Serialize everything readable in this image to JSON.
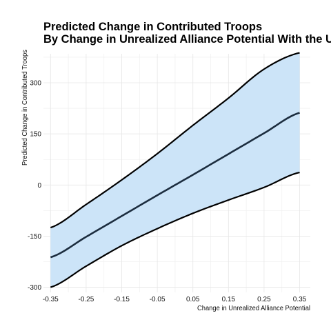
{
  "chart_data": {
    "type": "area",
    "title": "Predicted Change in Contributed Troops",
    "subtitle": "By Change in Unrealized Alliance Potential With the United States",
    "xlabel": "Change in Unrealized Alliance Potential",
    "ylabel": "Predicted Change in Contributed Troops",
    "xlim": [
      -0.37,
      0.38
    ],
    "ylim": [
      -315,
      385
    ],
    "x_ticks": [
      -0.35,
      -0.25,
      -0.15,
      -0.05,
      0.05,
      0.15,
      0.25,
      0.35
    ],
    "x_tick_labels": [
      "-0.35",
      "-0.25",
      "-0.15",
      "-0.05",
      "0.05",
      "0.15",
      "0.25",
      "0.35"
    ],
    "y_ticks": [
      -300,
      -150,
      0,
      150,
      300
    ],
    "y_tick_labels": [
      "-300",
      "-150",
      "0",
      "150",
      "300"
    ],
    "grid": true,
    "x": [
      -0.35,
      -0.25,
      -0.15,
      -0.05,
      0.05,
      0.15,
      0.25,
      0.35
    ],
    "series": [
      {
        "role": "estimate",
        "values": [
          -212,
          -152,
          -91,
          -30,
          30,
          91,
          152,
          212
        ]
      },
      {
        "role": "upper",
        "values": [
          -125,
          -57,
          15,
          92,
          175,
          255,
          340,
          388
        ]
      },
      {
        "role": "lower",
        "values": [
          -300,
          -238,
          -178,
          -128,
          -83,
          -44,
          -7,
          37
        ]
      }
    ],
    "colors": {
      "ribbon_fill": "#cce4f8",
      "estimate_line": "#1c2d3f",
      "bound_line": "#000000",
      "grid_major": "#e6e6e6",
      "grid_minor": "#f1f1f1"
    }
  }
}
